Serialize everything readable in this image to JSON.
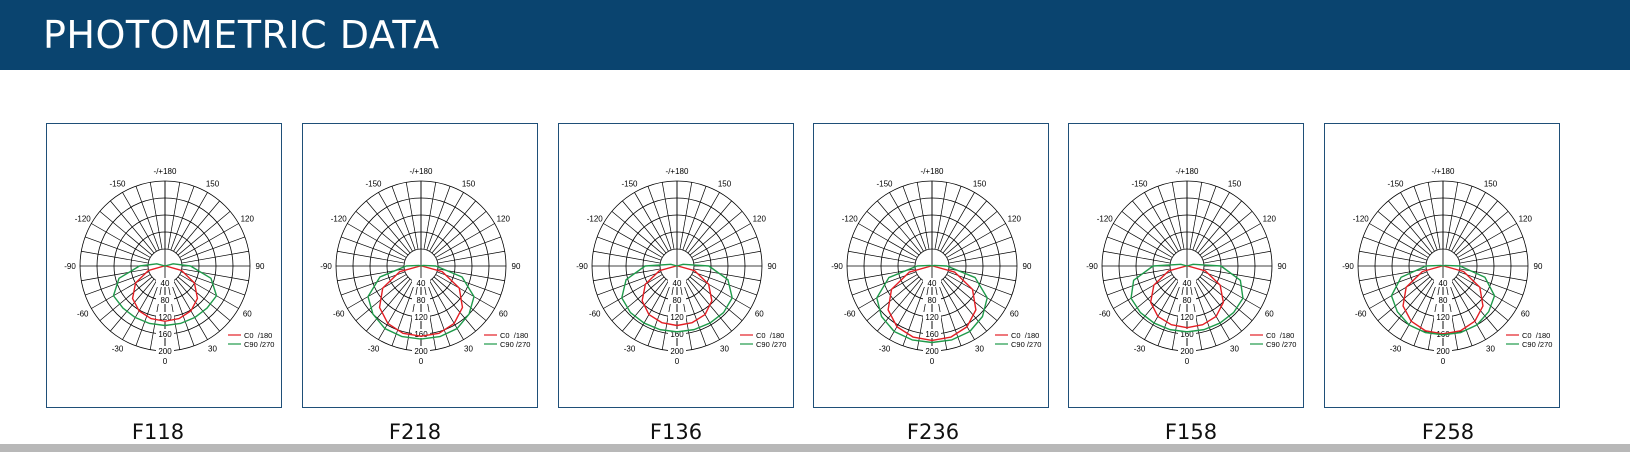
{
  "header": {
    "title": "PHOTOMETRIC DATA"
  },
  "colors": {
    "banner": "#0a446f",
    "c0_series": "#e31e24",
    "c90_series": "#1f9a4a"
  },
  "chart_data": [
    {
      "type": "polar",
      "label": "F118",
      "angle_labels": [
        "-/+180",
        "150",
        "120",
        "90",
        "60",
        "30",
        "0",
        "-30",
        "-60",
        "-90",
        "-120",
        "-150"
      ],
      "radial_labels": [
        "40",
        "80",
        "120",
        "160",
        "200"
      ],
      "rlim": [
        0,
        200
      ],
      "legend": [
        "C0  /180",
        "C90 /270"
      ],
      "series": [
        {
          "name": "C0  /180",
          "angles": [
            0,
            15,
            30,
            45,
            60,
            75,
            90,
            105,
            120
          ],
          "values": [
            130,
            128,
            122,
            108,
            80,
            40,
            2,
            0,
            0
          ]
        },
        {
          "name": "C90 /270",
          "angles": [
            0,
            15,
            30,
            45,
            60,
            75,
            90,
            105,
            120
          ],
          "values": [
            140,
            140,
            140,
            140,
            140,
            112,
            60,
            20,
            0
          ]
        }
      ]
    },
    {
      "type": "polar",
      "label": "F218",
      "angle_labels": [
        "-/+180",
        "150",
        "120",
        "90",
        "60",
        "30",
        "0",
        "-30",
        "-60",
        "-90",
        "-120",
        "-150"
      ],
      "radial_labels": [
        "40",
        "80",
        "120",
        "160",
        "200"
      ],
      "rlim": [
        0,
        200
      ],
      "legend": [
        "C0  /180",
        "C90 /270"
      ],
      "series": [
        {
          "name": "C0  /180",
          "angles": [
            0,
            15,
            30,
            45,
            60,
            75,
            90,
            105,
            120
          ],
          "values": [
            165,
            164,
            156,
            138,
            104,
            52,
            2,
            0,
            0
          ]
        },
        {
          "name": "C90 /270",
          "angles": [
            0,
            15,
            30,
            45,
            60,
            75,
            90,
            105,
            120
          ],
          "values": [
            172,
            172,
            170,
            160,
            144,
            100,
            35,
            5,
            0
          ]
        }
      ]
    },
    {
      "type": "polar",
      "label": "F136",
      "angle_labels": [
        "-/+180",
        "150",
        "120",
        "90",
        "60",
        "30",
        "0",
        "-30",
        "-60",
        "-90",
        "-120",
        "-150"
      ],
      "radial_labels": [
        "40",
        "80",
        "120",
        "160",
        "200"
      ],
      "rlim": [
        0,
        200
      ],
      "legend": [
        "C0  /180",
        "C90 /270"
      ],
      "series": [
        {
          "name": "C0  /180",
          "angles": [
            0,
            15,
            30,
            45,
            60,
            75,
            90,
            105,
            120
          ],
          "values": [
            140,
            138,
            132,
            116,
            86,
            43,
            2,
            0,
            0
          ]
        },
        {
          "name": "C90 /270",
          "angles": [
            0,
            15,
            30,
            45,
            60,
            75,
            90,
            105,
            120
          ],
          "values": [
            155,
            155,
            155,
            155,
            150,
            124,
            75,
            15,
            0
          ]
        }
      ]
    },
    {
      "type": "polar",
      "label": "F236",
      "angle_labels": [
        "-/+180",
        "150",
        "120",
        "90",
        "60",
        "30",
        "0",
        "-30",
        "-60",
        "-90",
        "-120",
        "-150"
      ],
      "radial_labels": [
        "40",
        "80",
        "120",
        "160",
        "200"
      ],
      "rlim": [
        0,
        200
      ],
      "legend": [
        "C0  /180",
        "C90 /270"
      ],
      "series": [
        {
          "name": "C0  /180",
          "angles": [
            0,
            15,
            30,
            45,
            60,
            75,
            90,
            105,
            120
          ],
          "values": [
            175,
            173,
            165,
            146,
            110,
            55,
            2,
            0,
            0
          ]
        },
        {
          "name": "C90 /270",
          "angles": [
            0,
            15,
            30,
            45,
            60,
            75,
            90,
            105,
            120
          ],
          "values": [
            180,
            180,
            178,
            168,
            150,
            105,
            35,
            5,
            0
          ]
        }
      ]
    },
    {
      "type": "polar",
      "label": "F158",
      "angle_labels": [
        "-/+180",
        "150",
        "120",
        "90",
        "60",
        "30",
        "0",
        "-30",
        "-60",
        "-90",
        "-120",
        "-150"
      ],
      "radial_labels": [
        "40",
        "80",
        "120",
        "160",
        "200"
      ],
      "rlim": [
        0,
        200
      ],
      "legend": [
        "C0  /180",
        "C90 /270"
      ],
      "series": [
        {
          "name": "C0  /180",
          "angles": [
            0,
            15,
            30,
            45,
            60,
            75,
            90,
            105,
            120
          ],
          "values": [
            145,
            143,
            137,
            121,
            90,
            45,
            2,
            0,
            0
          ]
        },
        {
          "name": "C90 /270",
          "angles": [
            0,
            15,
            30,
            45,
            60,
            75,
            90,
            105,
            120
          ],
          "values": [
            155,
            155,
            155,
            155,
            152,
            130,
            80,
            15,
            0
          ]
        }
      ]
    },
    {
      "type": "polar",
      "label": "F258",
      "angle_labels": [
        "-/+180",
        "150",
        "120",
        "90",
        "60",
        "30",
        "0",
        "-30",
        "-60",
        "-90",
        "-120",
        "-150"
      ],
      "radial_labels": [
        "40",
        "80",
        "120",
        "160",
        "200"
      ],
      "rlim": [
        0,
        200
      ],
      "legend": [
        "C0  /180",
        "C90 /270"
      ],
      "series": [
        {
          "name": "C0  /180",
          "angles": [
            0,
            15,
            30,
            45,
            60,
            75,
            90,
            105,
            120
          ],
          "values": [
            160,
            158,
            150,
            133,
            100,
            50,
            2,
            0,
            0
          ]
        },
        {
          "name": "C90 /270",
          "angles": [
            0,
            15,
            30,
            45,
            60,
            75,
            90,
            105,
            120
          ],
          "values": [
            162,
            162,
            160,
            152,
            140,
            102,
            40,
            5,
            0
          ]
        }
      ]
    }
  ]
}
